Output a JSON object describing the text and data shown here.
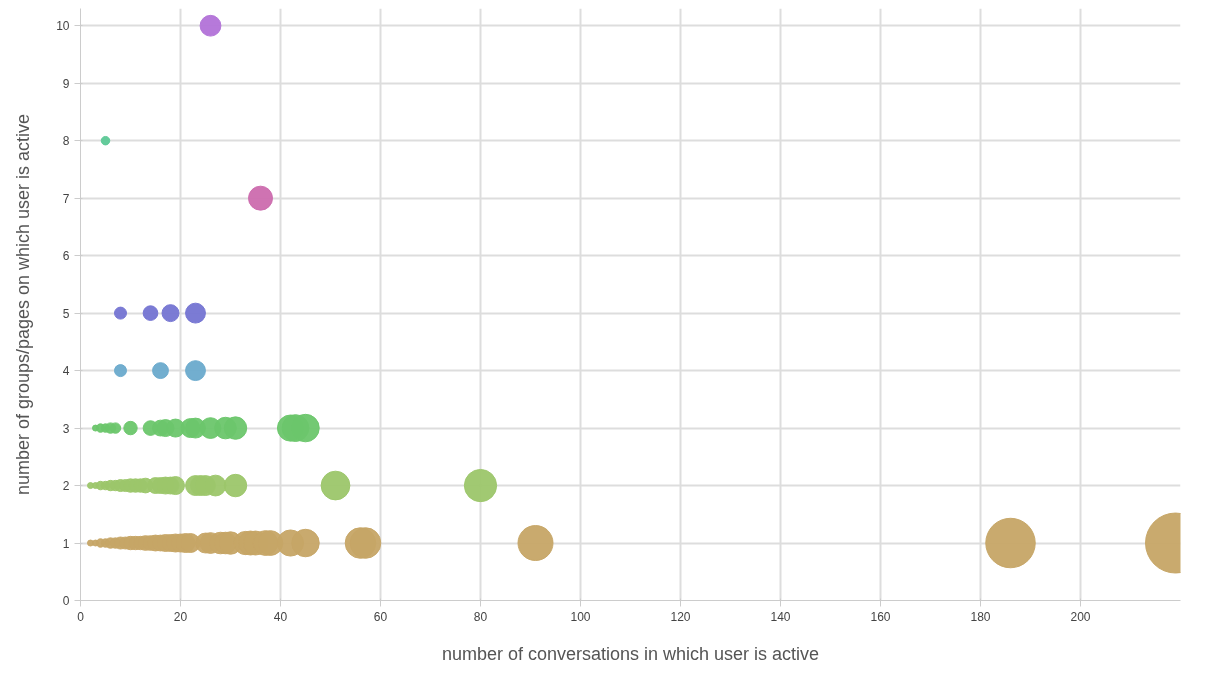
{
  "chart_data": {
    "type": "bubble",
    "xlabel": "number of conversations in which user is active",
    "ylabel": "number of groups/pages on which user is active",
    "xlim": [
      0,
      220
    ],
    "ylim": [
      0,
      10.3
    ],
    "xticks": [
      0,
      20,
      40,
      60,
      80,
      100,
      120,
      140,
      160,
      180,
      200
    ],
    "yticks": [
      0,
      1,
      2,
      3,
      4,
      5,
      6,
      7,
      8,
      9,
      10
    ],
    "grid": true,
    "series": [
      {
        "color": "#c6a566",
        "x": [
          2,
          3,
          4,
          5,
          6,
          7,
          8,
          9,
          10,
          11,
          12,
          13,
          14,
          15,
          16,
          17,
          18,
          19,
          20,
          21,
          22,
          25,
          26,
          28,
          29,
          30,
          33,
          34,
          35,
          37,
          38,
          42,
          45,
          56,
          57,
          91,
          186,
          219
        ],
        "values": [
          1,
          1,
          1,
          1,
          1,
          1,
          1,
          1,
          1,
          1,
          1,
          1,
          1,
          1,
          1,
          1,
          1,
          1,
          1,
          1,
          1,
          1,
          1,
          1,
          1,
          1,
          1,
          1,
          1,
          1,
          1,
          1,
          1,
          1,
          1,
          1,
          1,
          1
        ],
        "sizes": [
          0.01,
          0.01,
          0.02,
          0.02,
          0.03,
          0.03,
          0.04,
          0.04,
          0.05,
          0.05,
          0.05,
          0.06,
          0.06,
          0.07,
          0.07,
          0.08,
          0.08,
          0.09,
          0.09,
          0.1,
          0.1,
          0.11,
          0.12,
          0.13,
          0.13,
          0.14,
          0.15,
          0.16,
          0.16,
          0.17,
          0.17,
          0.19,
          0.21,
          0.26,
          0.26,
          0.34,
          0.68,
          1
        ]
      },
      {
        "color": "#9cc66a",
        "x": [
          2,
          3,
          4,
          5,
          6,
          7,
          8,
          9,
          10,
          11,
          12,
          13,
          15,
          16,
          17,
          18,
          19,
          23,
          24,
          25,
          27,
          31,
          51,
          80
        ],
        "values": [
          2,
          2,
          2,
          2,
          2,
          2,
          2,
          2,
          2,
          2,
          2,
          2,
          2,
          2,
          2,
          2,
          2,
          2,
          2,
          2,
          2,
          2,
          2,
          2
        ],
        "sizes": [
          0.01,
          0.01,
          0.02,
          0.02,
          0.03,
          0.03,
          0.04,
          0.04,
          0.05,
          0.05,
          0.05,
          0.06,
          0.07,
          0.07,
          0.08,
          0.08,
          0.09,
          0.11,
          0.11,
          0.11,
          0.12,
          0.14,
          0.23,
          0.29
        ]
      },
      {
        "color": "#6cc66c",
        "x": [
          3,
          4,
          5,
          6,
          7,
          10,
          14,
          16,
          17,
          19,
          22,
          23,
          26,
          29,
          31,
          42,
          43,
          45
        ],
        "values": [
          3,
          3,
          3,
          3,
          3,
          3,
          3,
          3,
          3,
          3,
          3,
          3,
          3,
          3,
          3,
          3,
          3,
          3
        ],
        "sizes": [
          0.01,
          0.02,
          0.02,
          0.03,
          0.03,
          0.05,
          0.06,
          0.07,
          0.08,
          0.09,
          0.1,
          0.11,
          0.12,
          0.13,
          0.14,
          0.19,
          0.2,
          0.21
        ]
      },
      {
        "color": "#6aaacc",
        "x": [
          8,
          16,
          23
        ],
        "values": [
          4,
          4,
          4
        ],
        "sizes": [
          0.04,
          0.07,
          0.11
        ]
      },
      {
        "color": "#7474d2",
        "x": [
          8,
          14,
          18,
          23
        ],
        "values": [
          5,
          5,
          5,
          5
        ],
        "sizes": [
          0.04,
          0.06,
          0.08,
          0.11
        ]
      },
      {
        "color": "#cc6cae",
        "x": [
          36
        ],
        "values": [
          7
        ],
        "sizes": [
          0.16
        ]
      },
      {
        "color": "#5cc896",
        "x": [
          5
        ],
        "values": [
          8
        ],
        "sizes": [
          0.02
        ]
      },
      {
        "color": "#b272d8",
        "x": [
          26
        ],
        "values": [
          10
        ],
        "sizes": [
          0.12
        ]
      }
    ]
  }
}
